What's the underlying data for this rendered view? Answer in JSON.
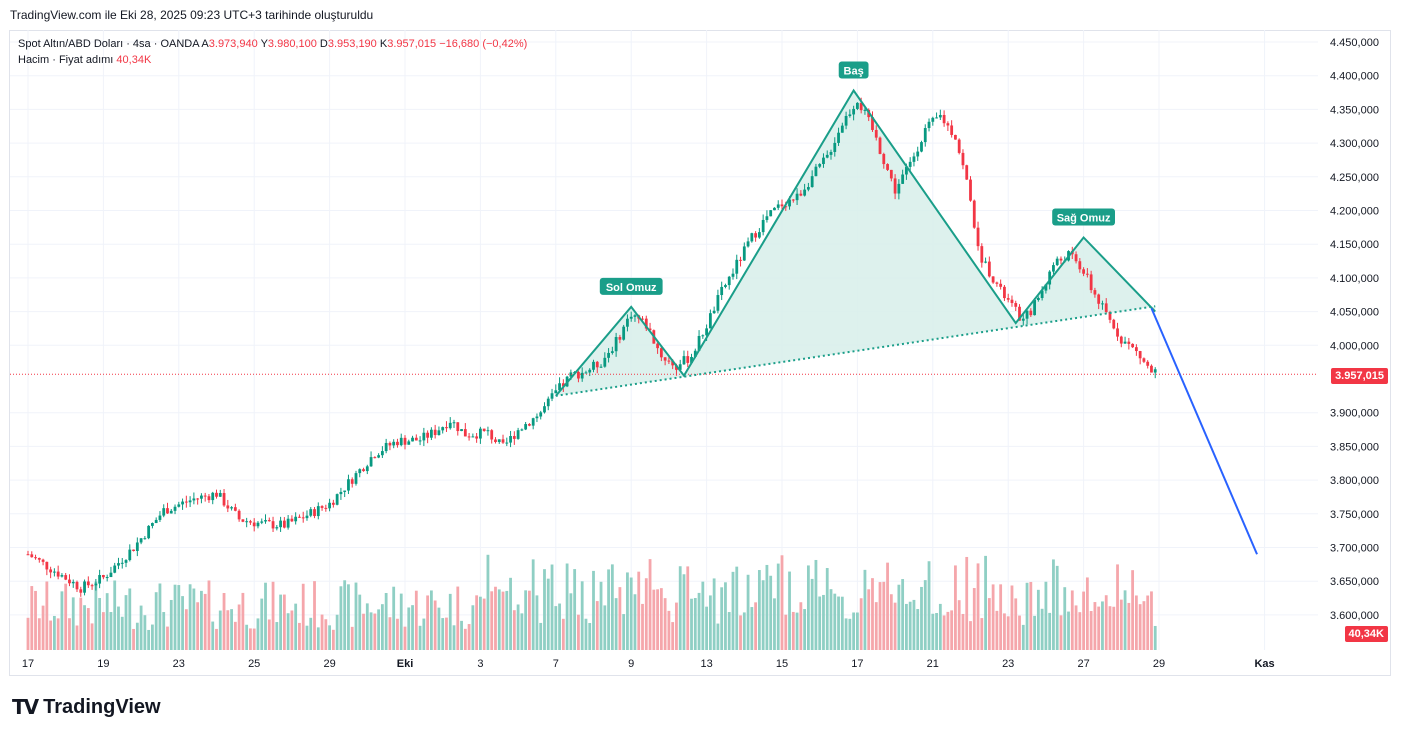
{
  "header": {
    "caption": "TradingView.com ile Eki 28, 2025 09:23 UTC+3 tarihinde oluşturuldu"
  },
  "legend": {
    "symbol": "Spot Altın/ABD Doları · 4sa · OANDA",
    "o_label": "A",
    "o_value": "3.973,940",
    "h_label": "Y",
    "h_value": "3.980,100",
    "l_label": "D",
    "l_value": "3.953,190",
    "c_label": "K",
    "c_value": "3.957,015",
    "change": "−16,680 (−0,42%)",
    "volume_label": "Hacim · Fiyat adımı",
    "volume_value": "40,34K"
  },
  "brand": {
    "name": "TradingView"
  },
  "colors": {
    "up": "#089981",
    "down": "#f23645",
    "up_vol": "#8fcfc4",
    "down_vol": "#f5a6ab",
    "pattern": "#1a9e89",
    "pattern_fill": "#d7efea",
    "projection": "#2962ff"
  },
  "chart_data": {
    "type": "candlestick",
    "title": "Spot Altın/ABD Doları · 4sa · OANDA",
    "current_price": "3.957,015",
    "current_volume": "40,34K",
    "y_axis": {
      "ticks": [
        4450000,
        4400000,
        4350000,
        4300000,
        4250000,
        4200000,
        4150000,
        4100000,
        4050000,
        4000000,
        3900000,
        3850000,
        3800000,
        3750000,
        3700000,
        3650000,
        3600000
      ],
      "tick_labels": [
        "4.450,000",
        "4.400,000",
        "4.350,000",
        "4.300,000",
        "4.250,000",
        "4.200,000",
        "4.150,000",
        "4.100,000",
        "4.050,000",
        "4.000,000",
        "3.900,000",
        "3.850,000",
        "3.800,000",
        "3.750,000",
        "3.700,000",
        "3.650,000",
        "3.600,000"
      ],
      "range": [
        3560000,
        4470000
      ]
    },
    "x_axis": {
      "labels": [
        "17",
        "19",
        "23",
        "25",
        "29",
        "Eki",
        "3",
        "7",
        "9",
        "13",
        "15",
        "17",
        "21",
        "23",
        "27",
        "29",
        "Kas"
      ],
      "positions": [
        0,
        20,
        40,
        60,
        80,
        100,
        120,
        140,
        160,
        180,
        200,
        220,
        240,
        260,
        280,
        300,
        328
      ]
    },
    "price_points": [
      [
        0,
        3690
      ],
      [
        8,
        3662
      ],
      [
        14,
        3640
      ],
      [
        20,
        3655
      ],
      [
        28,
        3700
      ],
      [
        36,
        3755
      ],
      [
        44,
        3772
      ],
      [
        50,
        3780
      ],
      [
        56,
        3742
      ],
      [
        62,
        3735
      ],
      [
        68,
        3733
      ],
      [
        74,
        3748
      ],
      [
        80,
        3765
      ],
      [
        86,
        3802
      ],
      [
        92,
        3840
      ],
      [
        98,
        3858
      ],
      [
        104,
        3860
      ],
      [
        108,
        3872
      ],
      [
        112,
        3889
      ],
      [
        116,
        3868
      ],
      [
        122,
        3870
      ],
      [
        126,
        3848
      ],
      [
        130,
        3875
      ],
      [
        136,
        3900
      ],
      [
        140,
        3930
      ],
      [
        144,
        3955
      ],
      [
        148,
        3962
      ],
      [
        152,
        3975
      ],
      [
        156,
        4005
      ],
      [
        160,
        4048
      ],
      [
        164,
        4030
      ],
      [
        168,
        3985
      ],
      [
        172,
        3968
      ],
      [
        176,
        3985
      ],
      [
        180,
        4030
      ],
      [
        184,
        4080
      ],
      [
        188,
        4120
      ],
      [
        192,
        4160
      ],
      [
        196,
        4190
      ],
      [
        200,
        4210
      ],
      [
        204,
        4220
      ],
      [
        208,
        4250
      ],
      [
        212,
        4280
      ],
      [
        216,
        4330
      ],
      [
        220,
        4365
      ],
      [
        224,
        4320
      ],
      [
        228,
        4260
      ],
      [
        230,
        4230
      ],
      [
        234,
        4270
      ],
      [
        238,
        4320
      ],
      [
        242,
        4340
      ],
      [
        246,
        4310
      ],
      [
        250,
        4220
      ],
      [
        252,
        4140
      ],
      [
        256,
        4100
      ],
      [
        258,
        4080
      ],
      [
        262,
        4050
      ],
      [
        264,
        4035
      ],
      [
        268,
        4070
      ],
      [
        272,
        4120
      ],
      [
        276,
        4135
      ],
      [
        280,
        4110
      ],
      [
        282,
        4085
      ],
      [
        286,
        4045
      ],
      [
        290,
        4010
      ],
      [
        294,
        3990
      ],
      [
        296,
        3975
      ],
      [
        298,
        3960
      ]
    ],
    "pattern": {
      "labels": [
        "Sol Omuz",
        "Baş",
        "Sağ Omuz"
      ],
      "points": [
        [
          140,
          3925
        ],
        [
          160,
          4057
        ],
        [
          174,
          3955
        ],
        [
          219,
          4378
        ],
        [
          262,
          4033
        ],
        [
          280,
          4160
        ],
        [
          299,
          4050
        ]
      ],
      "neckline": [
        [
          140,
          3925
        ],
        [
          299,
          4058
        ]
      ],
      "projection": [
        [
          298,
          4055
        ],
        [
          326,
          3690
        ]
      ]
    },
    "volume_range": [
      0,
      160000
    ]
  }
}
